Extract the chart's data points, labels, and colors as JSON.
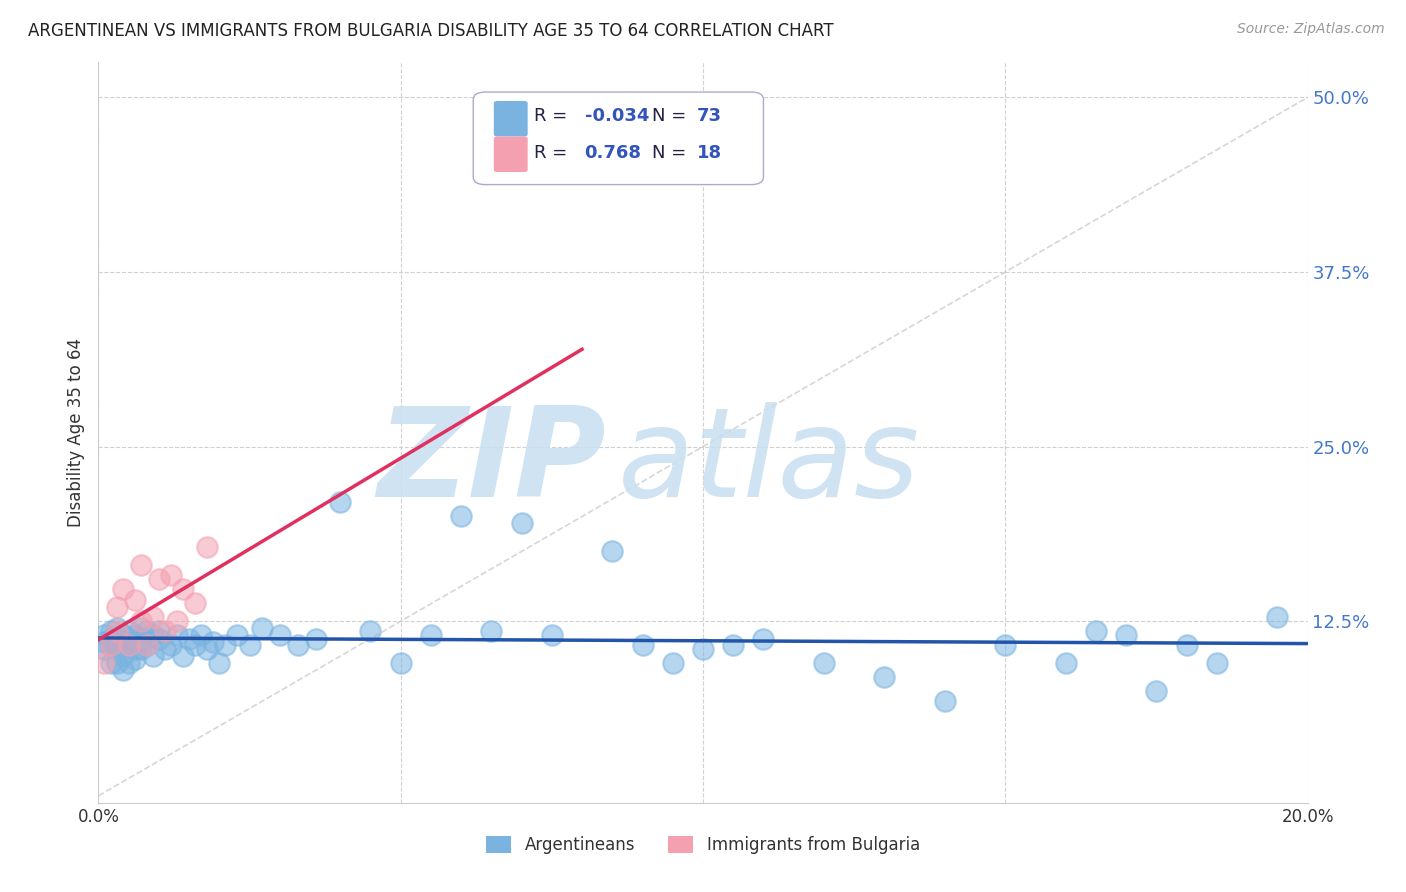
{
  "title": "ARGENTINEAN VS IMMIGRANTS FROM BULGARIA DISABILITY AGE 35 TO 64 CORRELATION CHART",
  "source": "Source: ZipAtlas.com",
  "ylabel": "Disability Age 35 to 64",
  "xlim": [
    0.0,
    0.2
  ],
  "ylim": [
    -0.005,
    0.525
  ],
  "yticks": [
    0.125,
    0.25,
    0.375,
    0.5
  ],
  "ytick_labels": [
    "12.5%",
    "25.0%",
    "37.5%",
    "50.0%"
  ],
  "xtick_vals": [
    0.0,
    0.05,
    0.1,
    0.15,
    0.2
  ],
  "xtick_labels": [
    "0.0%",
    "",
    "",
    "",
    "20.0%"
  ],
  "grid_color": "#cccccc",
  "background_color": "#ffffff",
  "watermark_zip": "ZIP",
  "watermark_atlas": "atlas",
  "watermark_color_zip": "#c8dff0",
  "watermark_color_atlas": "#c8dff0",
  "series1_color": "#7ab3e0",
  "series2_color": "#f4a0b0",
  "trendline1_color": "#2255aa",
  "trendline2_color": "#e03060",
  "refline_color": "#cccccc",
  "legend_label1": "Argentineans",
  "legend_label2": "Immigrants from Bulgaria",
  "legend_r1": "-0.034",
  "legend_n1": "73",
  "legend_r2": "0.768",
  "legend_n2": "18",
  "legend_text_color": "#333366",
  "legend_value_color": "#3344aa",
  "ax1_x": [
    0.001,
    0.001,
    0.001,
    0.002,
    0.002,
    0.002,
    0.002,
    0.003,
    0.003,
    0.003,
    0.003,
    0.004,
    0.004,
    0.004,
    0.004,
    0.005,
    0.005,
    0.005,
    0.005,
    0.006,
    0.006,
    0.006,
    0.007,
    0.007,
    0.007,
    0.008,
    0.008,
    0.009,
    0.009,
    0.01,
    0.01,
    0.011,
    0.012,
    0.013,
    0.014,
    0.015,
    0.016,
    0.017,
    0.018,
    0.019,
    0.02,
    0.021,
    0.023,
    0.025,
    0.027,
    0.03,
    0.033,
    0.036,
    0.04,
    0.045,
    0.05,
    0.055,
    0.06,
    0.065,
    0.07,
    0.075,
    0.085,
    0.09,
    0.095,
    0.1,
    0.105,
    0.11,
    0.12,
    0.13,
    0.14,
    0.15,
    0.16,
    0.165,
    0.17,
    0.175,
    0.18,
    0.185,
    0.195
  ],
  "ax1_y": [
    0.115,
    0.11,
    0.105,
    0.118,
    0.112,
    0.108,
    0.095,
    0.12,
    0.11,
    0.105,
    0.095,
    0.115,
    0.108,
    0.1,
    0.09,
    0.118,
    0.112,
    0.108,
    0.095,
    0.115,
    0.105,
    0.098,
    0.12,
    0.112,
    0.105,
    0.118,
    0.108,
    0.115,
    0.1,
    0.112,
    0.118,
    0.105,
    0.108,
    0.115,
    0.1,
    0.112,
    0.108,
    0.115,
    0.105,
    0.11,
    0.095,
    0.108,
    0.115,
    0.108,
    0.12,
    0.115,
    0.108,
    0.112,
    0.21,
    0.118,
    0.095,
    0.115,
    0.2,
    0.118,
    0.195,
    0.115,
    0.175,
    0.108,
    0.095,
    0.105,
    0.108,
    0.112,
    0.095,
    0.085,
    0.068,
    0.108,
    0.095,
    0.118,
    0.115,
    0.075,
    0.108,
    0.095,
    0.128
  ],
  "ax2_x": [
    0.001,
    0.002,
    0.003,
    0.003,
    0.004,
    0.005,
    0.006,
    0.007,
    0.007,
    0.008,
    0.009,
    0.01,
    0.011,
    0.012,
    0.013,
    0.014,
    0.016,
    0.018
  ],
  "ax2_y": [
    0.095,
    0.108,
    0.118,
    0.135,
    0.148,
    0.108,
    0.14,
    0.165,
    0.125,
    0.108,
    0.128,
    0.155,
    0.118,
    0.158,
    0.125,
    0.148,
    0.138,
    0.178
  ]
}
